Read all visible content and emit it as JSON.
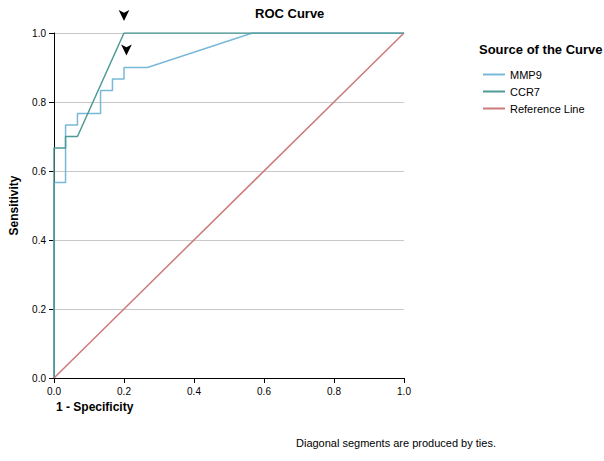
{
  "chart_data": {
    "type": "line",
    "title": "ROC Curve",
    "x_label": "1 - Specificity",
    "y_label": "Sensitivity",
    "footnote": "Diagonal segments are produced by ties.",
    "legend_title": "Source of the Curve",
    "legend": "right",
    "grid": true,
    "xlim": [
      0,
      1
    ],
    "ylim": [
      0,
      1
    ],
    "xticks": [
      {
        "value": 0,
        "label": "0.0"
      },
      {
        "value": 0.2,
        "label": "0.2"
      },
      {
        "value": 0.4,
        "label": "0.4"
      },
      {
        "value": 0.6,
        "label": "0.6"
      },
      {
        "value": 0.8,
        "label": "0.8"
      },
      {
        "value": 1,
        "label": "1.0"
      }
    ],
    "yticks": [
      {
        "value": 0,
        "label": "0.0"
      },
      {
        "value": 0.2,
        "label": "0.2"
      },
      {
        "value": 0.4,
        "label": "0.4"
      },
      {
        "value": 0.6,
        "label": "0.6"
      },
      {
        "value": 0.8,
        "label": "0.8"
      },
      {
        "value": 1,
        "label": "1.0"
      }
    ],
    "series": [
      {
        "name": "MMP9",
        "color": "#7ab8d9",
        "x": [
          0,
          0,
          0.033,
          0.033,
          0.067,
          0.067,
          0.133,
          0.133,
          0.167,
          0.167,
          0.2,
          0.2,
          0.267,
          0.567,
          1
        ],
        "values": [
          0,
          0.567,
          0.567,
          0.733,
          0.733,
          0.767,
          0.767,
          0.833,
          0.833,
          0.867,
          0.867,
          0.9,
          0.9,
          1,
          1
        ],
        "cutoff": [
          0.207,
          0.9
        ]
      },
      {
        "name": "CCR7",
        "color": "#4e9a96",
        "x": [
          0,
          0,
          0.033,
          0.033,
          0.067,
          0.2,
          1
        ],
        "values": [
          0,
          0.667,
          0.667,
          0.7,
          0.7,
          1,
          1
        ],
        "cutoff": [
          0.2,
          1
        ]
      },
      {
        "name": "Reference Line",
        "color": "#cc7a7a",
        "x": [
          0,
          1
        ],
        "values": [
          0,
          1
        ]
      }
    ]
  }
}
